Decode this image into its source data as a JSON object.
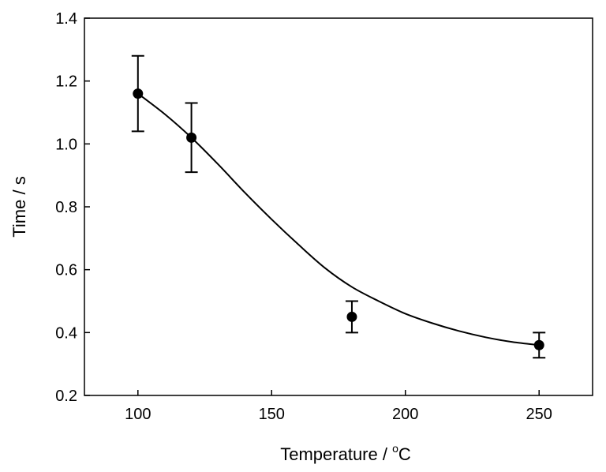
{
  "chart_data": {
    "type": "scatter",
    "xlabel": "Temperature / ",
    "xlabel_unit_sup": "o",
    "xlabel_unit": "C",
    "ylabel": "Time / s",
    "xlim": [
      80,
      270
    ],
    "ylim": [
      0.2,
      1.4
    ],
    "x_ticks": [
      100,
      150,
      200,
      250
    ],
    "x_tick_labels": [
      "100",
      "150",
      "200",
      "250"
    ],
    "y_ticks": [
      0.2,
      0.4,
      0.6,
      0.8,
      1.0,
      1.2,
      1.4
    ],
    "y_tick_labels": [
      "0.2",
      "0.4",
      "0.6",
      "0.8",
      "1.0",
      "1.2",
      "1.4"
    ],
    "grid": false,
    "points": [
      {
        "x": 100,
        "y": 1.16,
        "y_low": 1.04,
        "y_high": 1.28
      },
      {
        "x": 120,
        "y": 1.02,
        "y_low": 0.91,
        "y_high": 1.13
      },
      {
        "x": 180,
        "y": 0.45,
        "y_low": 0.4,
        "y_high": 0.5
      },
      {
        "x": 250,
        "y": 0.36,
        "y_low": 0.32,
        "y_high": 0.4
      }
    ],
    "fit_curve": {
      "x": [
        100,
        110,
        120,
        130,
        140,
        150,
        160,
        170,
        180,
        190,
        200,
        210,
        220,
        230,
        240,
        250
      ],
      "y": [
        1.16,
        1.095,
        1.02,
        0.935,
        0.845,
        0.76,
        0.68,
        0.605,
        0.545,
        0.5,
        0.46,
        0.43,
        0.405,
        0.385,
        0.37,
        0.36
      ]
    },
    "colors": {
      "marker": "#000000",
      "line": "#000000"
    }
  }
}
